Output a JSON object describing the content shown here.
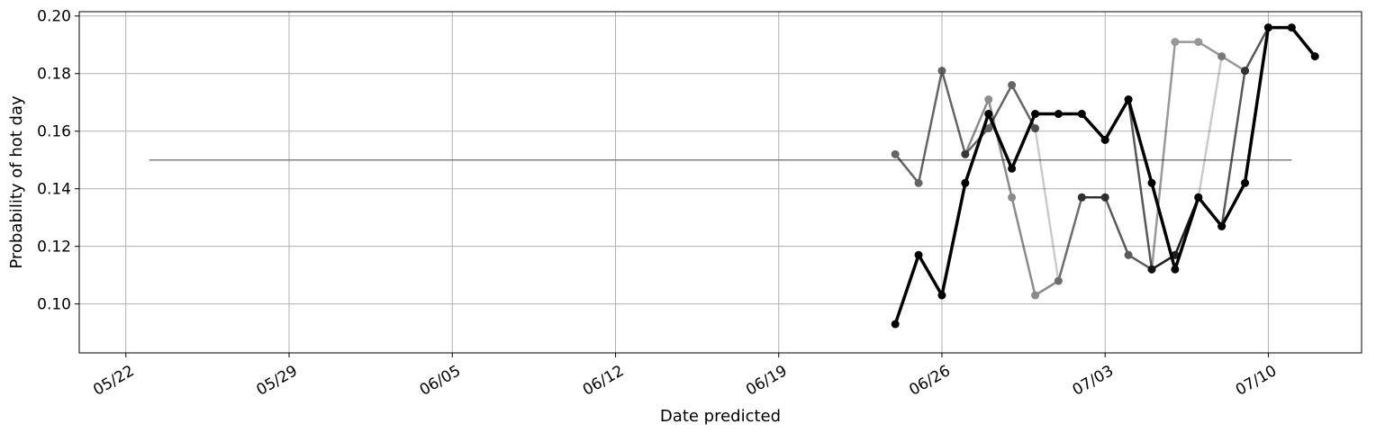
{
  "chart_data": {
    "type": "line",
    "title": "",
    "xlabel": "Date predicted",
    "ylabel": "Probability of hot day",
    "xlim": [
      "2023-05-20",
      "2023-07-14"
    ],
    "ylim": [
      0.083,
      0.2015
    ],
    "grid": true,
    "x_ticks": [
      {
        "date": "2023-05-22",
        "label": "05/22"
      },
      {
        "date": "2023-05-29",
        "label": "05/29"
      },
      {
        "date": "2023-06-05",
        "label": "06/05"
      },
      {
        "date": "2023-06-12",
        "label": "06/12"
      },
      {
        "date": "2023-06-19",
        "label": "06/19"
      },
      {
        "date": "2023-06-26",
        "label": "06/26"
      },
      {
        "date": "2023-07-03",
        "label": "07/03"
      },
      {
        "date": "2023-07-10",
        "label": "07/10"
      }
    ],
    "y_ticks": [
      {
        "value": 0.1,
        "label": "0.10"
      },
      {
        "value": 0.12,
        "label": "0.12"
      },
      {
        "value": 0.14,
        "label": "0.14"
      },
      {
        "value": 0.16,
        "label": "0.16"
      },
      {
        "value": 0.18,
        "label": "0.18"
      },
      {
        "value": 0.2,
        "label": "0.20"
      }
    ],
    "reference_line": {
      "x": [
        "2023-05-23",
        "2023-07-11"
      ],
      "y": 0.15,
      "color": "#808080"
    },
    "series": [
      {
        "opacity": 0.6,
        "x": [
          "2023-06-24",
          "2023-06-25",
          "2023-06-26",
          "2023-06-27",
          "2023-06-28",
          "2023-06-29",
          "2023-06-30"
        ],
        "values": [
          0.152,
          0.142,
          0.181,
          0.152,
          0.161,
          0.176,
          0.161
        ]
      },
      {
        "opacity": 0.45,
        "x": [
          "2023-06-27",
          "2023-06-28",
          "2023-06-29",
          "2023-06-30",
          "2023-07-01",
          "2023-07-02",
          "2023-07-03"
        ],
        "values": [
          0.152,
          0.171,
          0.137,
          0.103,
          0.108,
          0.137,
          0.137
        ]
      },
      {
        "opacity": 0.2,
        "x": [
          "2023-06-30",
          "2023-07-01",
          "2023-07-02",
          "2023-07-03",
          "2023-07-04",
          "2023-07-05",
          "2023-07-06",
          "2023-07-07",
          "2023-07-08"
        ],
        "values": [
          0.161,
          0.108,
          0.137,
          0.137,
          0.117,
          0.112,
          0.117,
          0.137,
          0.186
        ]
      },
      {
        "opacity": 0.55,
        "x": [
          "2023-07-02",
          "2023-07-03",
          "2023-07-04",
          "2023-07-05",
          "2023-07-06",
          "2023-07-07",
          "2023-07-08"
        ],
        "values": [
          0.137,
          0.137,
          0.117,
          0.112,
          0.117,
          0.137,
          0.127
        ]
      },
      {
        "opacity": 0.4,
        "x": [
          "2023-07-05",
          "2023-07-06",
          "2023-07-07",
          "2023-07-08",
          "2023-07-09"
        ],
        "values": [
          0.112,
          0.191,
          0.191,
          0.186,
          0.181
        ]
      },
      {
        "opacity": 0.65,
        "x": [
          "2023-07-03",
          "2023-07-04",
          "2023-07-05",
          "2023-07-06",
          "2023-07-07",
          "2023-07-08",
          "2023-07-09",
          "2023-07-10"
        ],
        "values": [
          0.157,
          0.171,
          0.112,
          0.117,
          0.137,
          0.127,
          0.181,
          0.196
        ]
      },
      {
        "opacity": 1.0,
        "bold": true,
        "x": [
          "2023-06-24",
          "2023-06-25",
          "2023-06-26",
          "2023-06-27",
          "2023-06-28",
          "2023-06-29",
          "2023-06-30",
          "2023-07-01",
          "2023-07-02",
          "2023-07-03",
          "2023-07-04",
          "2023-07-05",
          "2023-07-06",
          "2023-07-07",
          "2023-07-08",
          "2023-07-09",
          "2023-07-10",
          "2023-07-11",
          "2023-07-12"
        ],
        "values": [
          0.093,
          0.117,
          0.103,
          0.142,
          0.166,
          0.147,
          0.166,
          0.166,
          0.166,
          0.157,
          0.171,
          0.142,
          0.112,
          0.137,
          0.127,
          0.142,
          0.196,
          0.196,
          0.186
        ]
      }
    ]
  }
}
